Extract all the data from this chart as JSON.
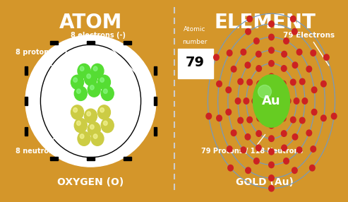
{
  "left_bg": "#D4962A",
  "right_bg": "#563368",
  "left_title": "ATOM",
  "right_title": "ELEMENT",
  "left_subtitle": "OXYGEN (O)",
  "right_subtitle": "GOLD (Au)",
  "title_color": "#FFFFFF",
  "subtitle_color": "#FFFFFF",
  "proton_color": "#55DD33",
  "neutron_color": "#CCCC44",
  "au_nucleus_color": "#66CC22",
  "orbit_color": "#7799BB",
  "electron_color": "#CC2222",
  "label_8protons": "8 protons (+)",
  "label_8electrons": "8 electrons (-)",
  "label_8neutrons": "8 neutrons",
  "label_79electrons": "79 Electrons",
  "label_protons_neutrons": "79 Protons / 118 Neutrons",
  "label_atomic_number_line1": "Atomic",
  "label_atomic_number_line2": "number",
  "label_79": "79",
  "label_Au": "Au"
}
